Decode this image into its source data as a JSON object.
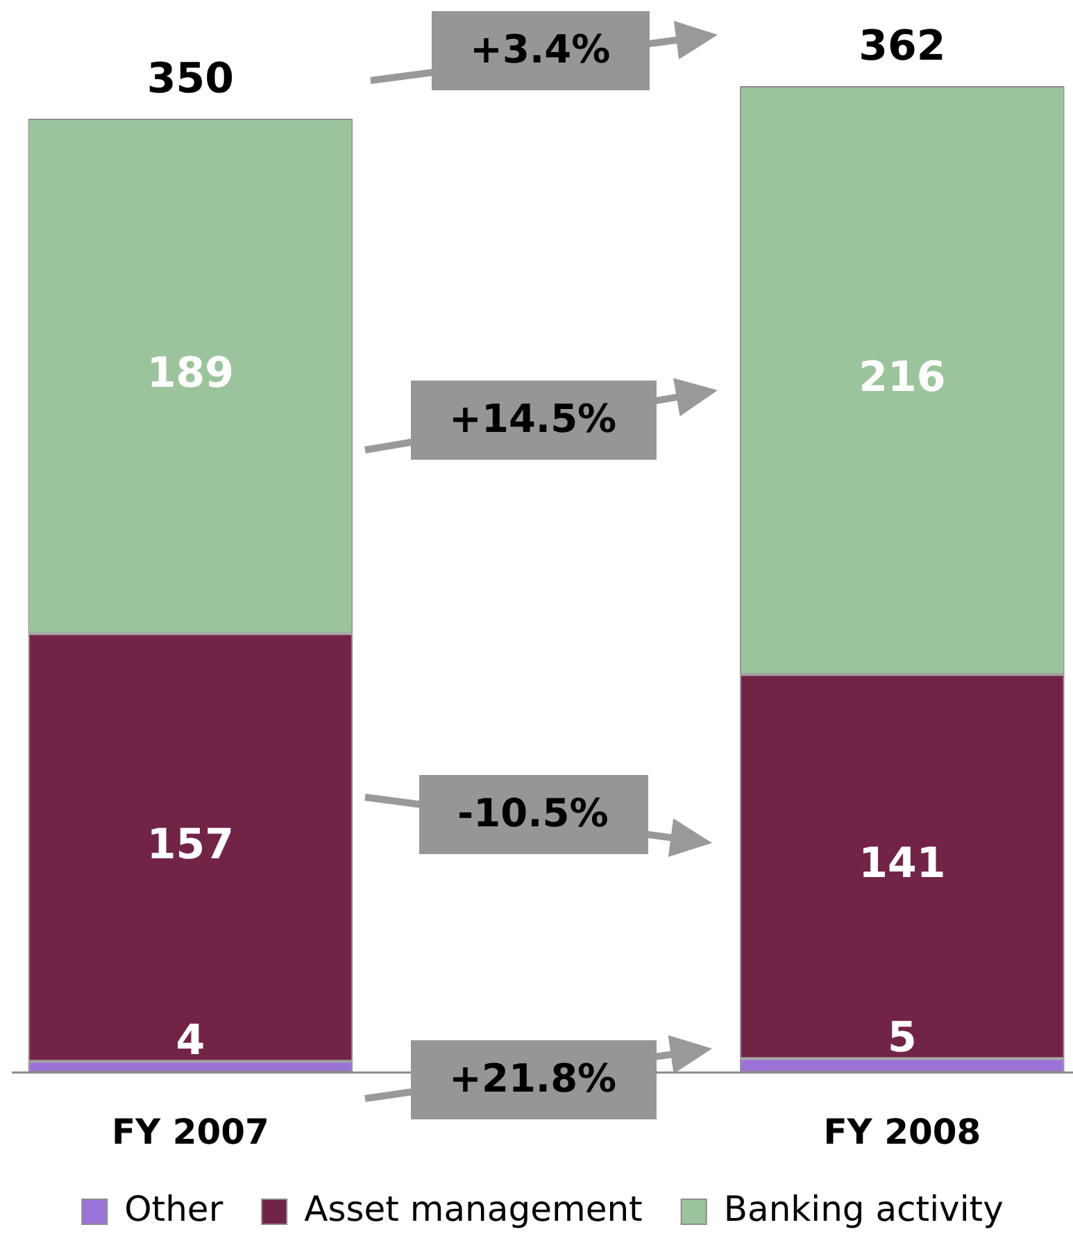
{
  "chart_data": {
    "type": "bar",
    "stacked": true,
    "categories": [
      "FY 2007",
      "FY 2008"
    ],
    "series": [
      {
        "name": "Other",
        "color": "#9b72d8",
        "values": [
          4,
          5
        ]
      },
      {
        "name": "Asset management",
        "color": "#722447",
        "values": [
          157,
          141
        ]
      },
      {
        "name": "Banking activity",
        "color": "#9cc49c",
        "values": [
          189,
          216
        ]
      }
    ],
    "totals": [
      "350",
      "362"
    ],
    "data_labels": true,
    "legend": "bottom",
    "tick_labels": "x",
    "annotations": [
      "+3.4%",
      "+14.5%",
      "-10.5%",
      "+21.8%"
    ]
  }
}
